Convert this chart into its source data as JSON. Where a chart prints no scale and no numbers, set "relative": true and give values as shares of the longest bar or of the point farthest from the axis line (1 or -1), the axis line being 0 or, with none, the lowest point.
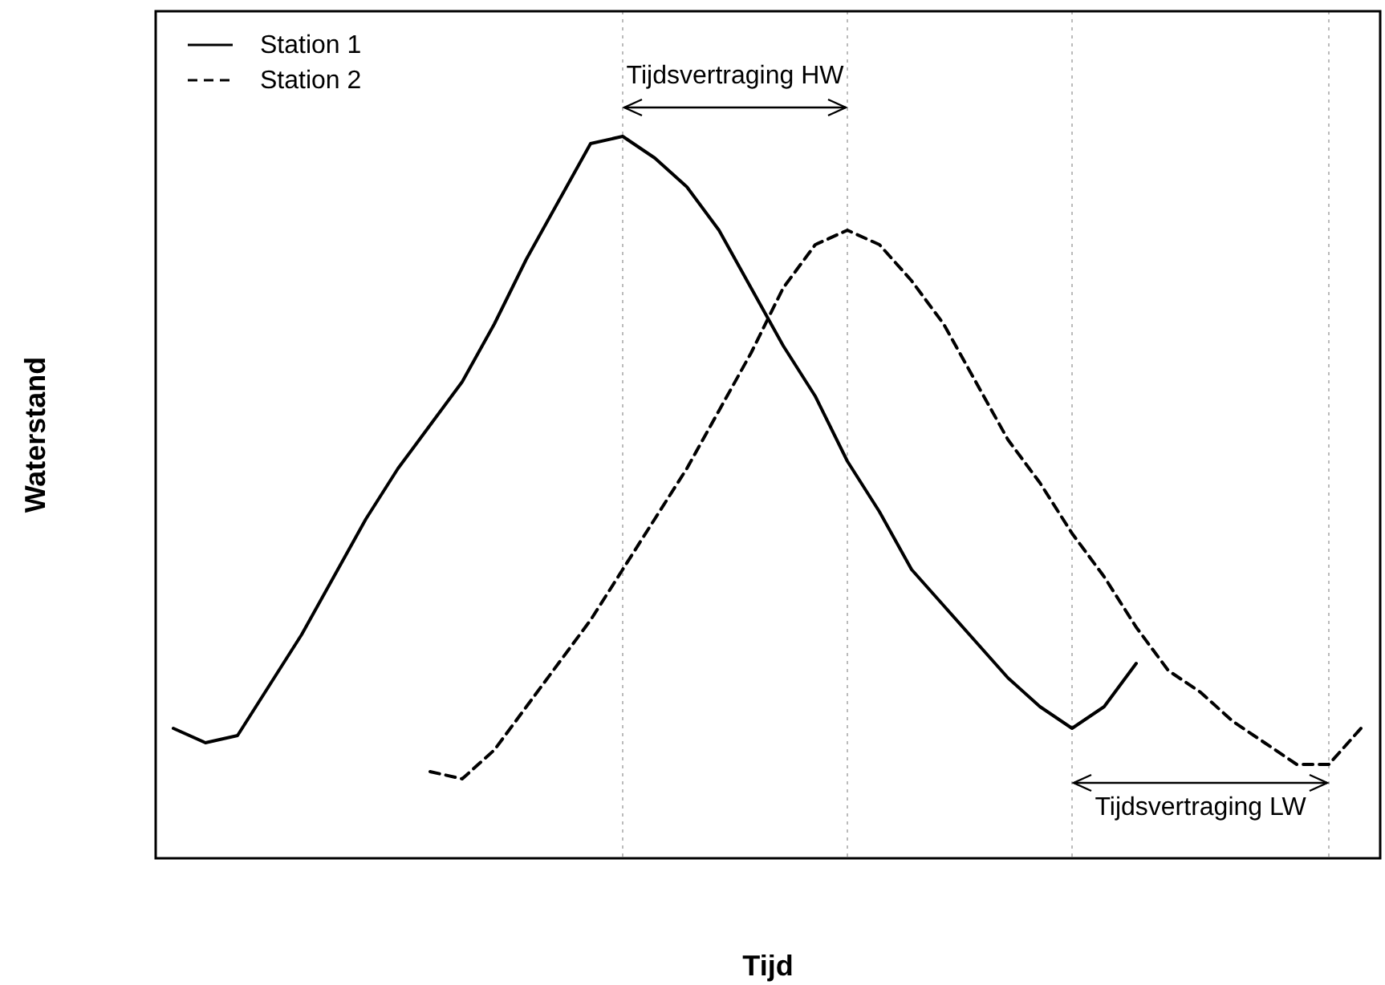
{
  "chart_data": {
    "type": "line",
    "relative": true,
    "xlabel": "Tijd",
    "ylabel": "Waterstand",
    "legend": "top left",
    "grid": "x",
    "categories": [
      null,
      null,
      null,
      null,
      null,
      null,
      null,
      null,
      null,
      null,
      null,
      null,
      null,
      null,
      null,
      null,
      null,
      null,
      null,
      null,
      null,
      null,
      null,
      null,
      null,
      null,
      null,
      null,
      null,
      null,
      null,
      null,
      null,
      null,
      null,
      null,
      null,
      null
    ],
    "series": [
      {
        "name": "Station 1",
        "color": "#000000",
        "line_style": "solid",
        "values": [
          0.18,
          0.16,
          0.17,
          0.24,
          0.31,
          0.39,
          0.47,
          0.54,
          0.6,
          0.66,
          0.74,
          0.83,
          0.91,
          0.99,
          1,
          0.97,
          0.93,
          0.87,
          0.79,
          0.71,
          0.64,
          0.55,
          0.48,
          0.4,
          0.35,
          0.3,
          0.25,
          0.21,
          0.18,
          0.21,
          0.27,
          null,
          null,
          null,
          null,
          null,
          null,
          null
        ]
      },
      {
        "name": "Station 2",
        "color": "#000000",
        "line_style": "dashed",
        "values": [
          null,
          null,
          null,
          null,
          null,
          null,
          null,
          null,
          0.12,
          0.11,
          0.15,
          0.21,
          0.27,
          0.33,
          0.4,
          0.47,
          0.54,
          0.62,
          0.7,
          0.79,
          0.85,
          0.87,
          0.85,
          0.8,
          0.74,
          0.66,
          0.58,
          0.52,
          0.45,
          0.39,
          0.32,
          0.26,
          0.23,
          0.19,
          0.16,
          0.13,
          0.13,
          0.18
        ]
      }
    ],
    "annotations": [
      "Tijdsvertraging HW",
      "Tijdsvertraging LW"
    ]
  }
}
